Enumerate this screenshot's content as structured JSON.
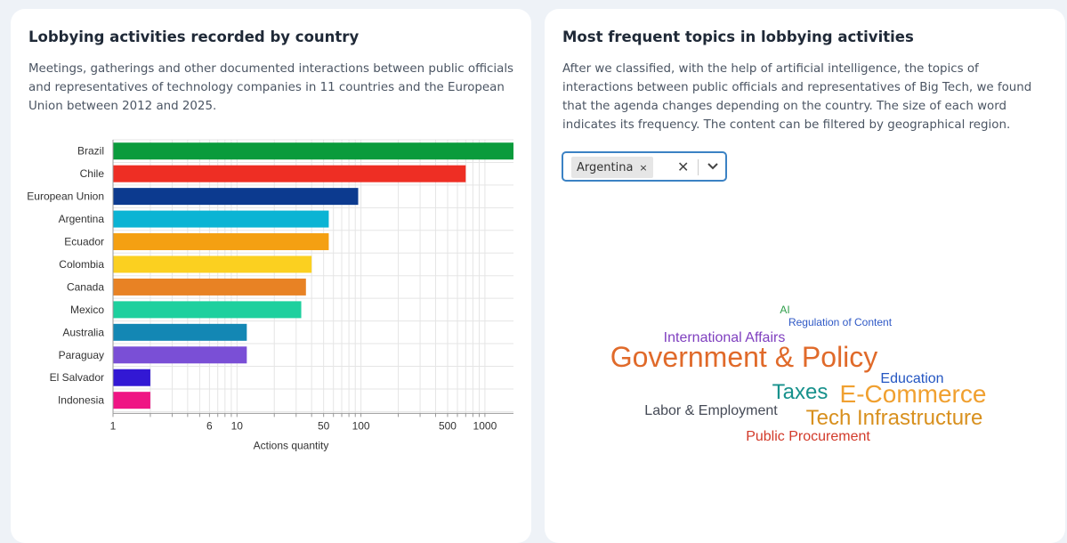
{
  "left_panel": {
    "title": "Lobbying activities recorded by country",
    "description": "Meetings, gatherings and other documented interactions between public officials and representatives of technology companies in 11 countries and the European Union between 2012 and 2025."
  },
  "right_panel": {
    "title": "Most frequent topics in lobbying activities",
    "description": "After we classified, with the help of artificial intelligence, the topics of interactions between public officials and representatives of Big Tech, we found that the agenda changes depending on the country. The size of each word indicates its frequency. The content can be filtered by geographical region.",
    "filter": {
      "selected": "Argentina",
      "remove_glyph": "×",
      "clear_glyph": "✕",
      "chevron_icon": "chevron-down-icon"
    }
  },
  "chart_data": {
    "type": "bar",
    "orientation": "horizontal",
    "xscale": "log",
    "xlabel": "Actions quantity",
    "ylabel": "",
    "xlim": [
      1,
      1700
    ],
    "xticks": [
      1,
      6,
      10,
      50,
      100,
      500,
      1000
    ],
    "xtick_labels": [
      "1",
      "6",
      "10",
      "50",
      "100",
      "500",
      "1000"
    ],
    "grid": true,
    "categories": [
      "Brazil",
      "Chile",
      "European Union",
      "Argentina",
      "Ecuador",
      "Colombia",
      "Canada",
      "Mexico",
      "Australia",
      "Paraguay",
      "El Salvador",
      "Indonesia"
    ],
    "values": [
      1700,
      700,
      95,
      55,
      55,
      40,
      36,
      33,
      12,
      12,
      2,
      2
    ],
    "colors": [
      "#0a9b3c",
      "#ee2e24",
      "#0c3a8f",
      "#0bb4d4",
      "#f4a012",
      "#fbd020",
      "#e88224",
      "#1ed09e",
      "#1387b4",
      "#7a4fd6",
      "#3218d4",
      "#ef1584"
    ]
  },
  "word_cloud": [
    {
      "text": "AI",
      "color": "#2e9e4a",
      "weight": 1
    },
    {
      "text": "Regulation of Content",
      "color": "#2f59c6",
      "weight": 1
    },
    {
      "text": "International Affairs",
      "color": "#7f3fbf",
      "weight": 2
    },
    {
      "text": "Government & Policy",
      "color": "#e06a2a",
      "weight": 5
    },
    {
      "text": "Education",
      "color": "#2456c2",
      "weight": 2
    },
    {
      "text": "Taxes",
      "color": "#17918c",
      "weight": 3
    },
    {
      "text": "E-Commerce",
      "color": "#f0a030",
      "weight": 4
    },
    {
      "text": "Labor & Employment",
      "color": "#454a56",
      "weight": 2
    },
    {
      "text": "Tech Infrastructure",
      "color": "#d8901e",
      "weight": 3
    },
    {
      "text": "Public Procurement",
      "color": "#d23a2a",
      "weight": 2
    }
  ]
}
